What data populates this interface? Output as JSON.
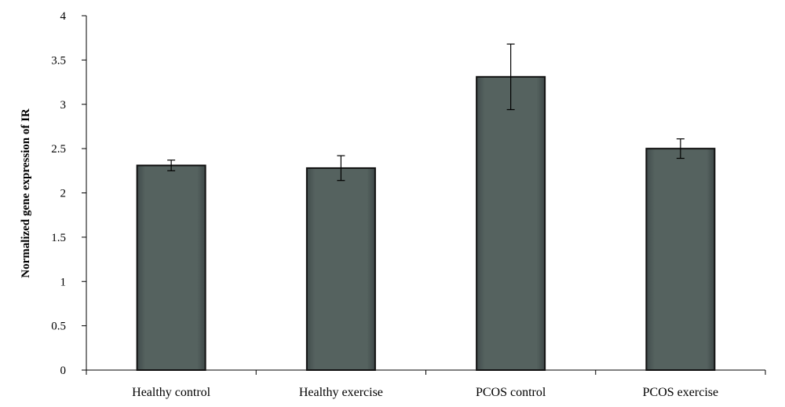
{
  "chart_data": {
    "type": "bar",
    "title": "",
    "xlabel": "",
    "ylabel": "Normalized gene expression of IR",
    "categories": [
      "Healthy control",
      "Healthy exercise",
      "PCOS control",
      "PCOS exercise"
    ],
    "values": [
      2.31,
      2.28,
      3.31,
      2.5
    ],
    "errors": [
      0.06,
      0.14,
      0.37,
      0.11
    ],
    "ylim": [
      0,
      4
    ],
    "yticks": [
      "0",
      "0.5",
      "1",
      "1.5",
      "2",
      "2.5",
      "3",
      "3.5",
      "4"
    ],
    "grid": false,
    "legend": "none",
    "bar_color": "#505d5d"
  }
}
